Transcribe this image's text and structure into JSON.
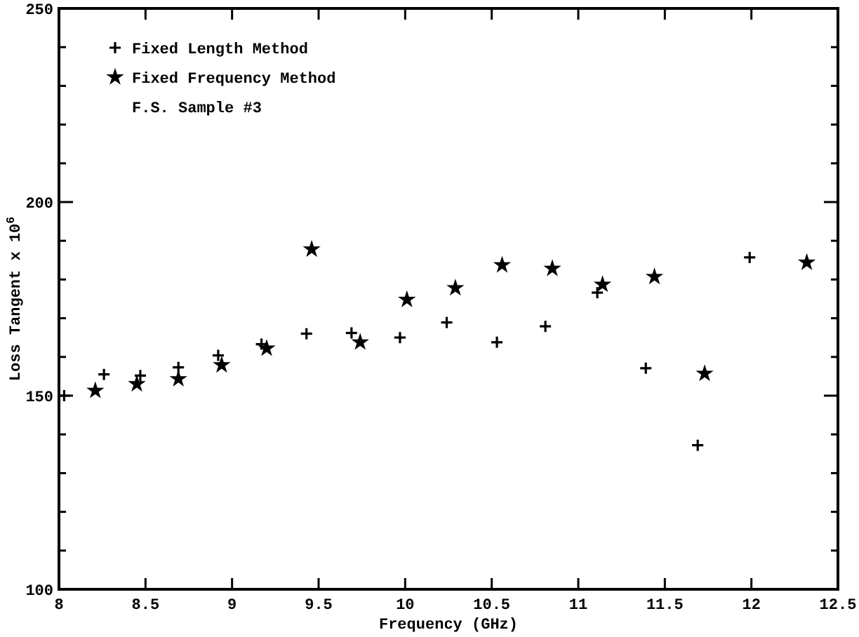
{
  "chart_data": {
    "type": "scatter",
    "xlabel": "Frequency (GHz)",
    "ylabel": "Loss Tangent x 10$^{6}$",
    "xlim": [
      8,
      12.5
    ],
    "xticks": [
      8,
      8.5,
      9,
      9.5,
      10,
      10.5,
      11,
      11.5,
      12,
      12.5
    ],
    "ylim": [
      100,
      250
    ],
    "yticks": [
      100,
      {
        "value": 110,
        "label": null
      },
      {
        "value": 120,
        "label": null
      },
      {
        "value": 130,
        "label": null
      },
      {
        "value": 140,
        "label": null
      },
      150,
      {
        "value": 160,
        "label": null
      },
      {
        "value": 170,
        "label": null
      },
      {
        "value": 180,
        "label": null
      },
      {
        "value": 190,
        "label": null
      },
      200,
      {
        "value": 210,
        "label": null
      },
      {
        "value": 220,
        "label": null
      },
      {
        "value": 230,
        "label": null
      },
      {
        "value": 240,
        "label": null
      },
      250
    ],
    "legend": "top left",
    "grid": false,
    "annotations": [
      "F.S. Sample #3"
    ],
    "series": [
      {
        "name": "Fixed Length Method",
        "color": "#000000",
        "marker": "cross",
        "x": [
          8.03,
          8.26,
          8.47,
          8.69,
          8.92,
          9.17,
          9.43,
          9.69,
          9.97,
          10.24,
          10.53,
          10.81,
          11.11,
          11.39,
          11.69,
          11.99
        ],
        "values": [
          150,
          155.5,
          155.2,
          157.3,
          160.4,
          163.3,
          166,
          166.2,
          165,
          168.9,
          163.8,
          167.9,
          176.6,
          157.1,
          137.2,
          185.7
        ]
      },
      {
        "name": "Fixed Frequency Method",
        "color": "#000000",
        "marker": "star",
        "x": [
          8.21,
          8.45,
          8.69,
          8.94,
          9.2,
          9.46,
          9.74,
          10.01,
          10.29,
          10.56,
          10.85,
          11.14,
          11.44,
          11.73,
          12.32
        ],
        "values": [
          151.3,
          153,
          154.3,
          157.9,
          162.2,
          187.8,
          163.8,
          174.8,
          177.8,
          183.7,
          182.8,
          178.7,
          180.7,
          155.7,
          184.4
        ]
      }
    ]
  }
}
